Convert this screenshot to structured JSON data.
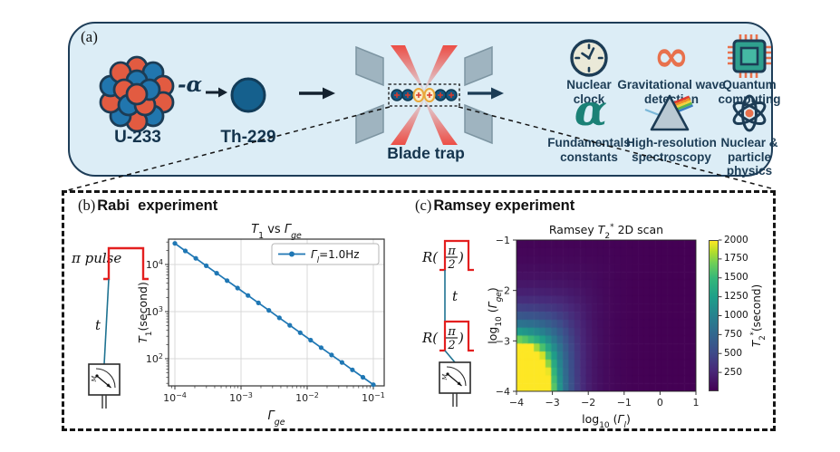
{
  "figure": {
    "panel_a": {
      "label": "(a)",
      "u233": "U-233",
      "alpha": "-α",
      "th229": "Th-229",
      "blade_trap": "Blade trap",
      "infinity_glyph": "∞",
      "alpha_glyph": "α",
      "applications": [
        {
          "icon": "nuclear-clock",
          "label": "Nuclear clock"
        },
        {
          "icon": "infinity",
          "label": "Gravitational wave detection"
        },
        {
          "icon": "quantum-chip",
          "label": "Quantum computing"
        },
        {
          "icon": "alpha-symbol",
          "label": "Fundamentals constants"
        },
        {
          "icon": "prism",
          "label": "High-resolution spectroscopy"
        },
        {
          "icon": "atom",
          "label": "Nuclear & particle physics"
        }
      ]
    },
    "panel_b": {
      "label": "(b)",
      "title": "Rabi  experiment",
      "pulse_label": "π pulse",
      "time_label": "t"
    },
    "panel_c": {
      "label": "(c)",
      "title": "Ramsey experiment",
      "pulse_prefix": "R(",
      "pulse_num": "π",
      "pulse_den": "2",
      "pulse_suffix": ")",
      "time_label": "t"
    },
    "colors": {
      "panel_bg": "#dcedf6",
      "navy": "#1c3c55",
      "ion_blue": "#14577f",
      "ion_gold": "#e9a83b",
      "laser_red": "#ee3c32",
      "pulse_red": "#e31f1f",
      "orange_icon": "#e8714d",
      "teal_icon": "#2fa08e",
      "mpl_blue": "#1f77b4"
    }
  },
  "chart_data": [
    {
      "id": "rabi_t1",
      "type": "line",
      "title": "T1 vs Gamma_ge",
      "title_parts": [
        [
          "T",
          "i"
        ],
        [
          "1",
          "sub"
        ],
        [
          " vs ",
          ""
        ],
        [
          "Γ",
          "i"
        ],
        [
          "ge",
          "sub-i"
        ]
      ],
      "xlabel_parts": [
        [
          "Γ",
          "i"
        ],
        [
          "ge",
          "sub-i"
        ]
      ],
      "ylabel_parts": [
        [
          "T",
          "i"
        ],
        [
          "1",
          "sub"
        ],
        [
          "(second)",
          ""
        ]
      ],
      "legend_parts": [
        [
          "Γ",
          "i"
        ],
        [
          "l",
          "sub-i"
        ],
        [
          "=1.0Hz",
          ""
        ]
      ],
      "legend_position": "upper right",
      "xscale": "log",
      "yscale": "log",
      "xlim": [
        8e-05,
        0.146
      ],
      "ylim": [
        26,
        34500
      ],
      "xticks_exp": [
        -4,
        -3,
        -2,
        -1
      ],
      "yticks_exp": [
        2,
        3,
        4
      ],
      "grid": true,
      "line_color": "#1f77b4",
      "marker": "circle",
      "x": [
        0.0001,
        0.0001438,
        0.0002069,
        0.0002976,
        0.0004281,
        0.0006158,
        0.0008859,
        0.001274,
        0.001833,
        0.002637,
        0.003793,
        0.005456,
        0.007848,
        0.01129,
        0.01624,
        0.02336,
        0.0336,
        0.04833,
        0.06952,
        0.1
      ],
      "y": [
        28000,
        19470,
        13533,
        9409,
        6541,
        4547,
        3161,
        2198,
        1528,
        1062,
        738,
        513,
        357,
        248,
        172,
        120,
        83.3,
        57.9,
        40.3,
        28
      ]
    },
    {
      "id": "ramsey_t2",
      "type": "heatmap",
      "title": "Ramsey T2* 2D scan",
      "title_parts": [
        [
          "Ramsey ",
          ""
        ],
        [
          "T",
          "i"
        ],
        [
          "2",
          "sub"
        ],
        [
          "*",
          "sup"
        ],
        [
          "  2D scan",
          ""
        ]
      ],
      "xlabel_parts": [
        [
          "log",
          ""
        ],
        [
          "10",
          "sub"
        ],
        [
          " (",
          ""
        ],
        [
          "Γ",
          "i"
        ],
        [
          "l",
          "sub-i"
        ],
        [
          ")",
          ""
        ]
      ],
      "ylabel_parts": [
        [
          "log",
          ""
        ],
        [
          "10",
          "sub"
        ],
        [
          " (",
          ""
        ],
        [
          "Γ",
          "i"
        ],
        [
          "ge",
          "sub-i"
        ],
        [
          ")",
          ""
        ]
      ],
      "colorbar_label_parts": [
        [
          "T",
          "i"
        ],
        [
          "2",
          "sub"
        ],
        [
          "*",
          "sup"
        ],
        [
          "(second)",
          ""
        ]
      ],
      "x_range": [
        -4,
        1
      ],
      "y_range": [
        -1,
        -4
      ],
      "xticks": [
        -4,
        -3,
        -2,
        -1,
        0,
        1
      ],
      "yticks": [
        -1,
        -2,
        -3,
        -4
      ],
      "grid_nx": 31,
      "grid_ny": 19,
      "vmin": 0,
      "vmax": 2000,
      "colorbar_ticks": [
        250,
        500,
        750,
        1000,
        1250,
        1500,
        1750,
        2000
      ],
      "value_model": "T2* = min(2000, 2/(10^x + 10^y)) seconds, x=log10(Gamma_l), y=log10(Gamma_ge)",
      "model_cap": 2000,
      "model_scale": 2,
      "colormap": "viridis",
      "colormap_stops": [
        [
          0,
          "#440154"
        ],
        [
          0.13,
          "#482878"
        ],
        [
          0.25,
          "#3e4a89"
        ],
        [
          0.38,
          "#31688e"
        ],
        [
          0.5,
          "#26828e"
        ],
        [
          0.62,
          "#1f9e89"
        ],
        [
          0.75,
          "#35b779"
        ],
        [
          0.85,
          "#6ece58"
        ],
        [
          0.93,
          "#b5de2b"
        ],
        [
          1,
          "#fde725"
        ]
      ]
    }
  ]
}
